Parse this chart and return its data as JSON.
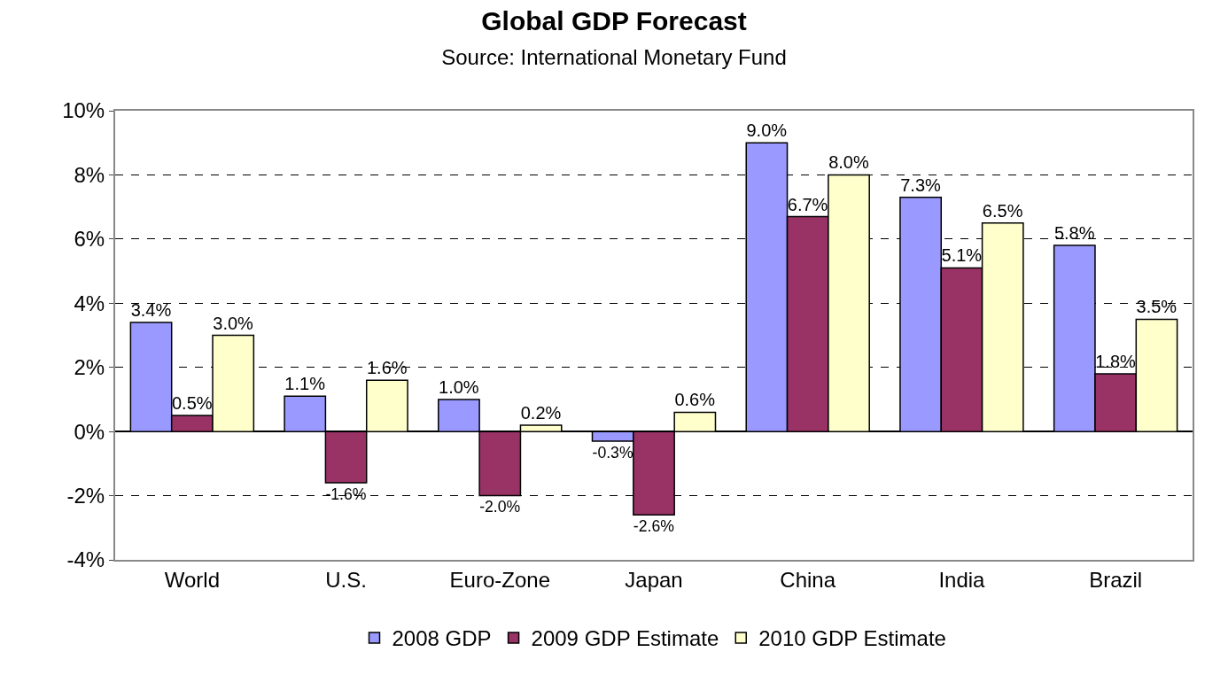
{
  "chart_data": {
    "type": "bar",
    "title": "Global GDP Forecast",
    "subtitle": "Source: International Monetary Fund",
    "categories": [
      "World",
      "U.S.",
      "Euro-Zone",
      "Japan",
      "China",
      "India",
      "Brazil"
    ],
    "series": [
      {
        "name": "2008 GDP",
        "color": "#9999ff",
        "values": [
          3.4,
          1.1,
          1.0,
          -0.3,
          9.0,
          7.3,
          5.8
        ],
        "value_labels": [
          "3.4%",
          "1.1%",
          "1.0%",
          "-0.3%",
          "9.0%",
          "7.3%",
          "5.8%"
        ]
      },
      {
        "name": "2009 GDP Estimate",
        "color": "#993366",
        "values": [
          0.5,
          -1.6,
          -2.0,
          -2.6,
          6.7,
          5.1,
          1.8
        ],
        "value_labels": [
          "0.5%",
          "-1.6%",
          "-2.0%",
          "-2.6%",
          "6.7%",
          "5.1%",
          "1.8%"
        ]
      },
      {
        "name": "2010 GDP Estimate",
        "color": "#ffffcc",
        "values": [
          3.0,
          1.6,
          0.2,
          0.6,
          8.0,
          6.5,
          3.5
        ],
        "value_labels": [
          "3.0%",
          "1.6%",
          "0.2%",
          "0.6%",
          "8.0%",
          "6.5%",
          "3.5%"
        ]
      }
    ],
    "ylim": [
      -4,
      10
    ],
    "yticks": [
      {
        "value": -4,
        "label": "-4%"
      },
      {
        "value": -2,
        "label": "-2%"
      },
      {
        "value": 0,
        "label": "0%"
      },
      {
        "value": 2,
        "label": "2%"
      },
      {
        "value": 4,
        "label": "4%"
      },
      {
        "value": 6,
        "label": "6%"
      },
      {
        "value": 8,
        "label": "8%"
      },
      {
        "value": 10,
        "label": "10%"
      }
    ],
    "grid": "y",
    "legend": "bottom"
  }
}
